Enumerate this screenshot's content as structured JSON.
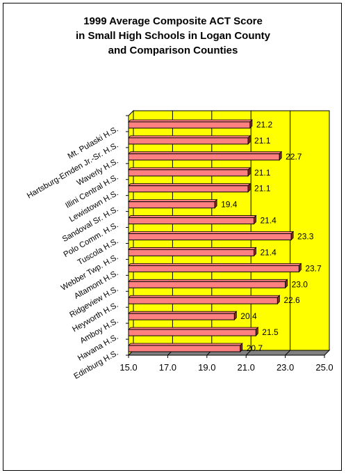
{
  "title_lines": [
    "1999 Average Composite ACT Score",
    "in Small High Schools in Logan County",
    "and Comparison Counties"
  ],
  "colors": {
    "plot_background": "#ffff00",
    "bar_face": "#ff8080",
    "bar_side": "#8b2a2a",
    "floor": "#808080",
    "gridline": "#000000"
  },
  "chart_data": {
    "type": "bar",
    "orientation": "horizontal",
    "style": "3d",
    "title": "1999 Average Composite ACT Score in Small High Schools in Logan County and Comparison Counties",
    "xlabel": "",
    "ylabel": "",
    "xlim": [
      15.0,
      25.0
    ],
    "x_ticks": [
      "15.0",
      "17.0",
      "19.0",
      "21.0",
      "23.0",
      "25.0"
    ],
    "grid": true,
    "categories": [
      "Mt. Pulaski H.S.",
      "Hartsburg-Emden Jr.-Sr. H.S.",
      "Waverly H.S.",
      "Illini Central H.S.",
      "Lewistown H.S.",
      "Sandoval Sr. H.S.",
      "Polo Comm. H.S.",
      "Tuscola H.S.",
      "Webber Twp. H.S.",
      "Altamont H.S.",
      "Ridgeview H.S.",
      "Heyworth H.S.",
      "Amboy H.S.",
      "Havana H.S.",
      "Edinburg H.S."
    ],
    "values": [
      21.2,
      21.1,
      22.7,
      21.1,
      21.1,
      19.4,
      21.4,
      23.3,
      21.4,
      23.7,
      23.0,
      22.6,
      20.4,
      21.5,
      20.7
    ],
    "value_labels": [
      "21.2",
      "21.1",
      "22.7",
      "21.1",
      "21.1",
      "19.4",
      "21.4",
      "23.3",
      "21.4",
      "23.7",
      "23.0",
      "22.6",
      "20.4",
      "21.5",
      "20.7"
    ]
  }
}
